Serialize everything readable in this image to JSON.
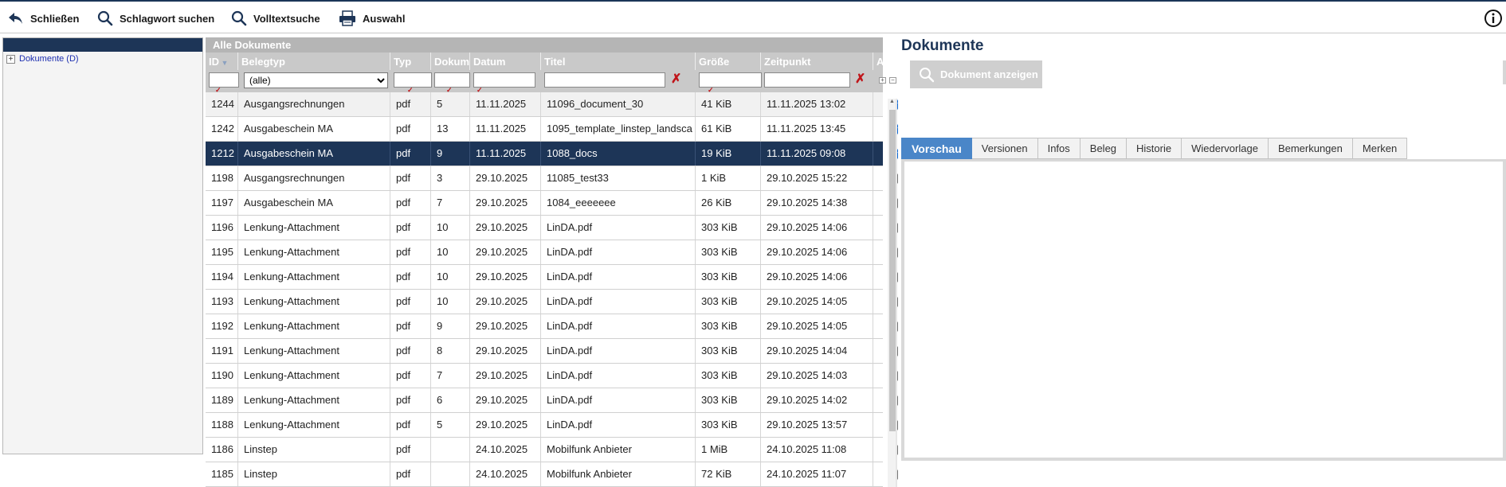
{
  "toolbar": {
    "close_label": "Schließen",
    "keyword_search_label": "Schlagwort suchen",
    "fulltext_search_label": "Volltextsuche",
    "selection_label": "Auswahl"
  },
  "tree": {
    "root_label": "Dokumente (D)"
  },
  "grid": {
    "caption": "Alle Dokumente",
    "columns": {
      "id": "ID",
      "belegtyp": "Belegtyp",
      "typ": "Typ",
      "dokum": "Dokum",
      "datum": "Datum",
      "titel": "Titel",
      "groesse": "Größe",
      "zeitpunkt": "Zeitpunkt",
      "ausw": "Ausw."
    },
    "filter": {
      "belegtyp_selected": "(alle)"
    },
    "rows": [
      {
        "id": "1244",
        "belegtyp": "Ausgangsrechnungen",
        "typ": "pdf",
        "dokum": "5",
        "datum": "11.11.2025",
        "titel": "11096_document_30",
        "groesse": "41 KiB",
        "zeitpunkt": "11.11.2025 13:02",
        "checked": true
      },
      {
        "id": "1242",
        "belegtyp": "Ausgabeschein MA",
        "typ": "pdf",
        "dokum": "13",
        "datum": "11.11.2025",
        "titel": "1095_template_linstep_landsca",
        "groesse": "61 KiB",
        "zeitpunkt": "11.11.2025 13:45",
        "checked": true
      },
      {
        "id": "1212",
        "belegtyp": "Ausgabeschein MA",
        "typ": "pdf",
        "dokum": "9",
        "datum": "11.11.2025",
        "titel": "1088_docs",
        "groesse": "19 KiB",
        "zeitpunkt": "11.11.2025 09:08",
        "checked": true,
        "selected": true
      },
      {
        "id": "1198",
        "belegtyp": "Ausgangsrechnungen",
        "typ": "pdf",
        "dokum": "3",
        "datum": "29.10.2025",
        "titel": "11085_test33",
        "groesse": "1 KiB",
        "zeitpunkt": "29.10.2025 15:22",
        "checked": false
      },
      {
        "id": "1197",
        "belegtyp": "Ausgabeschein MA",
        "typ": "pdf",
        "dokum": "7",
        "datum": "29.10.2025",
        "titel": "1084_eeeeeee",
        "groesse": "26 KiB",
        "zeitpunkt": "29.10.2025 14:38",
        "checked": false
      },
      {
        "id": "1196",
        "belegtyp": "Lenkung-Attachment",
        "typ": "pdf",
        "dokum": "10",
        "datum": "29.10.2025",
        "titel": "LinDA.pdf",
        "groesse": "303 KiB",
        "zeitpunkt": "29.10.2025 14:06",
        "checked": false
      },
      {
        "id": "1195",
        "belegtyp": "Lenkung-Attachment",
        "typ": "pdf",
        "dokum": "10",
        "datum": "29.10.2025",
        "titel": "LinDA.pdf",
        "groesse": "303 KiB",
        "zeitpunkt": "29.10.2025 14:06",
        "checked": false
      },
      {
        "id": "1194",
        "belegtyp": "Lenkung-Attachment",
        "typ": "pdf",
        "dokum": "10",
        "datum": "29.10.2025",
        "titel": "LinDA.pdf",
        "groesse": "303 KiB",
        "zeitpunkt": "29.10.2025 14:06",
        "checked": false
      },
      {
        "id": "1193",
        "belegtyp": "Lenkung-Attachment",
        "typ": "pdf",
        "dokum": "10",
        "datum": "29.10.2025",
        "titel": "LinDA.pdf",
        "groesse": "303 KiB",
        "zeitpunkt": "29.10.2025 14:05",
        "checked": false
      },
      {
        "id": "1192",
        "belegtyp": "Lenkung-Attachment",
        "typ": "pdf",
        "dokum": "9",
        "datum": "29.10.2025",
        "titel": "LinDA.pdf",
        "groesse": "303 KiB",
        "zeitpunkt": "29.10.2025 14:05",
        "checked": false
      },
      {
        "id": "1191",
        "belegtyp": "Lenkung-Attachment",
        "typ": "pdf",
        "dokum": "8",
        "datum": "29.10.2025",
        "titel": "LinDA.pdf",
        "groesse": "303 KiB",
        "zeitpunkt": "29.10.2025 14:04",
        "checked": false
      },
      {
        "id": "1190",
        "belegtyp": "Lenkung-Attachment",
        "typ": "pdf",
        "dokum": "7",
        "datum": "29.10.2025",
        "titel": "LinDA.pdf",
        "groesse": "303 KiB",
        "zeitpunkt": "29.10.2025 14:03",
        "checked": false
      },
      {
        "id": "1189",
        "belegtyp": "Lenkung-Attachment",
        "typ": "pdf",
        "dokum": "6",
        "datum": "29.10.2025",
        "titel": "LinDA.pdf",
        "groesse": "303 KiB",
        "zeitpunkt": "29.10.2025 14:02",
        "checked": false
      },
      {
        "id": "1188",
        "belegtyp": "Lenkung-Attachment",
        "typ": "pdf",
        "dokum": "5",
        "datum": "29.10.2025",
        "titel": "LinDA.pdf",
        "groesse": "303 KiB",
        "zeitpunkt": "29.10.2025 13:57",
        "checked": false
      },
      {
        "id": "1186",
        "belegtyp": "Linstep",
        "typ": "pdf",
        "dokum": "",
        "datum": "24.10.2025",
        "titel": "Mobilfunk Anbieter",
        "groesse": "1 MiB",
        "zeitpunkt": "24.10.2025 11:08",
        "checked": false
      },
      {
        "id": "1185",
        "belegtyp": "Linstep",
        "typ": "pdf",
        "dokum": "",
        "datum": "24.10.2025",
        "titel": "Mobilfunk Anbieter",
        "groesse": "72 KiB",
        "zeitpunkt": "24.10.2025 11:07",
        "checked": false
      }
    ]
  },
  "right_panel": {
    "title": "Dokumente",
    "show_document_label": "Dokument anzeigen",
    "tabs": [
      "Vorschau",
      "Versionen",
      "Infos",
      "Beleg",
      "Historie",
      "Wiedervorlage",
      "Bemerkungen",
      "Merken"
    ],
    "active_tab": "Vorschau"
  },
  "colors": {
    "brand_navy": "#1d3557",
    "selection_row": "#1d3557",
    "header_gray": "#c9c9c9",
    "active_tab": "#4a86c8",
    "clear_red": "#c0151a",
    "checkbox_blue": "#0f69d6"
  },
  "icons": {
    "close": "back-arrow-icon",
    "keyword_search": "magnifier-icon",
    "fulltext_search": "magnifier-icon",
    "selection": "printer-icon",
    "info": "info-circle-icon"
  }
}
